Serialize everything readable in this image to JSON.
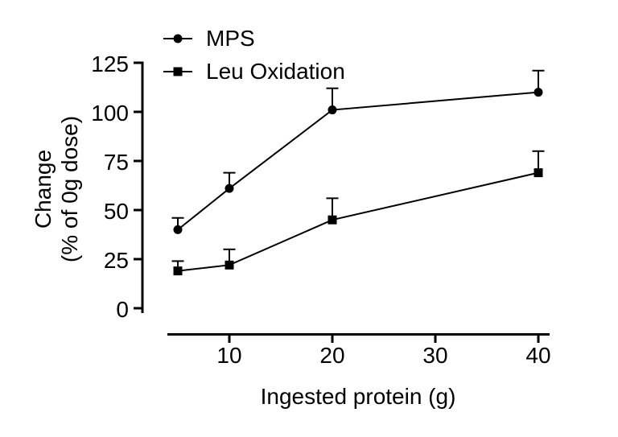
{
  "chart_data": {
    "type": "line",
    "title": "",
    "xlabel": "Ingested protein (g)",
    "ylabel": "Change (% of 0g dose)",
    "ylabel_lines": [
      "Change",
      "(% of 0g dose)"
    ],
    "x": [
      5,
      10,
      20,
      40
    ],
    "series": [
      {
        "name": "MPS",
        "marker": "circle",
        "values": [
          40,
          61,
          101,
          110
        ],
        "errors_up": [
          6,
          8,
          11,
          11
        ]
      },
      {
        "name": "Leu Oxidation",
        "marker": "square",
        "values": [
          19,
          22,
          45,
          69
        ],
        "errors_up": [
          5,
          8,
          11,
          11
        ]
      }
    ],
    "x_ticks": [
      10,
      20,
      30,
      40
    ],
    "y_ticks": [
      0,
      25,
      50,
      75,
      100,
      125
    ],
    "xlim": [
      4,
      41
    ],
    "ylim": [
      0,
      125
    ],
    "grid": false,
    "legend_position": "top-left-inside",
    "color": "#000000",
    "background": "#ffffff"
  }
}
